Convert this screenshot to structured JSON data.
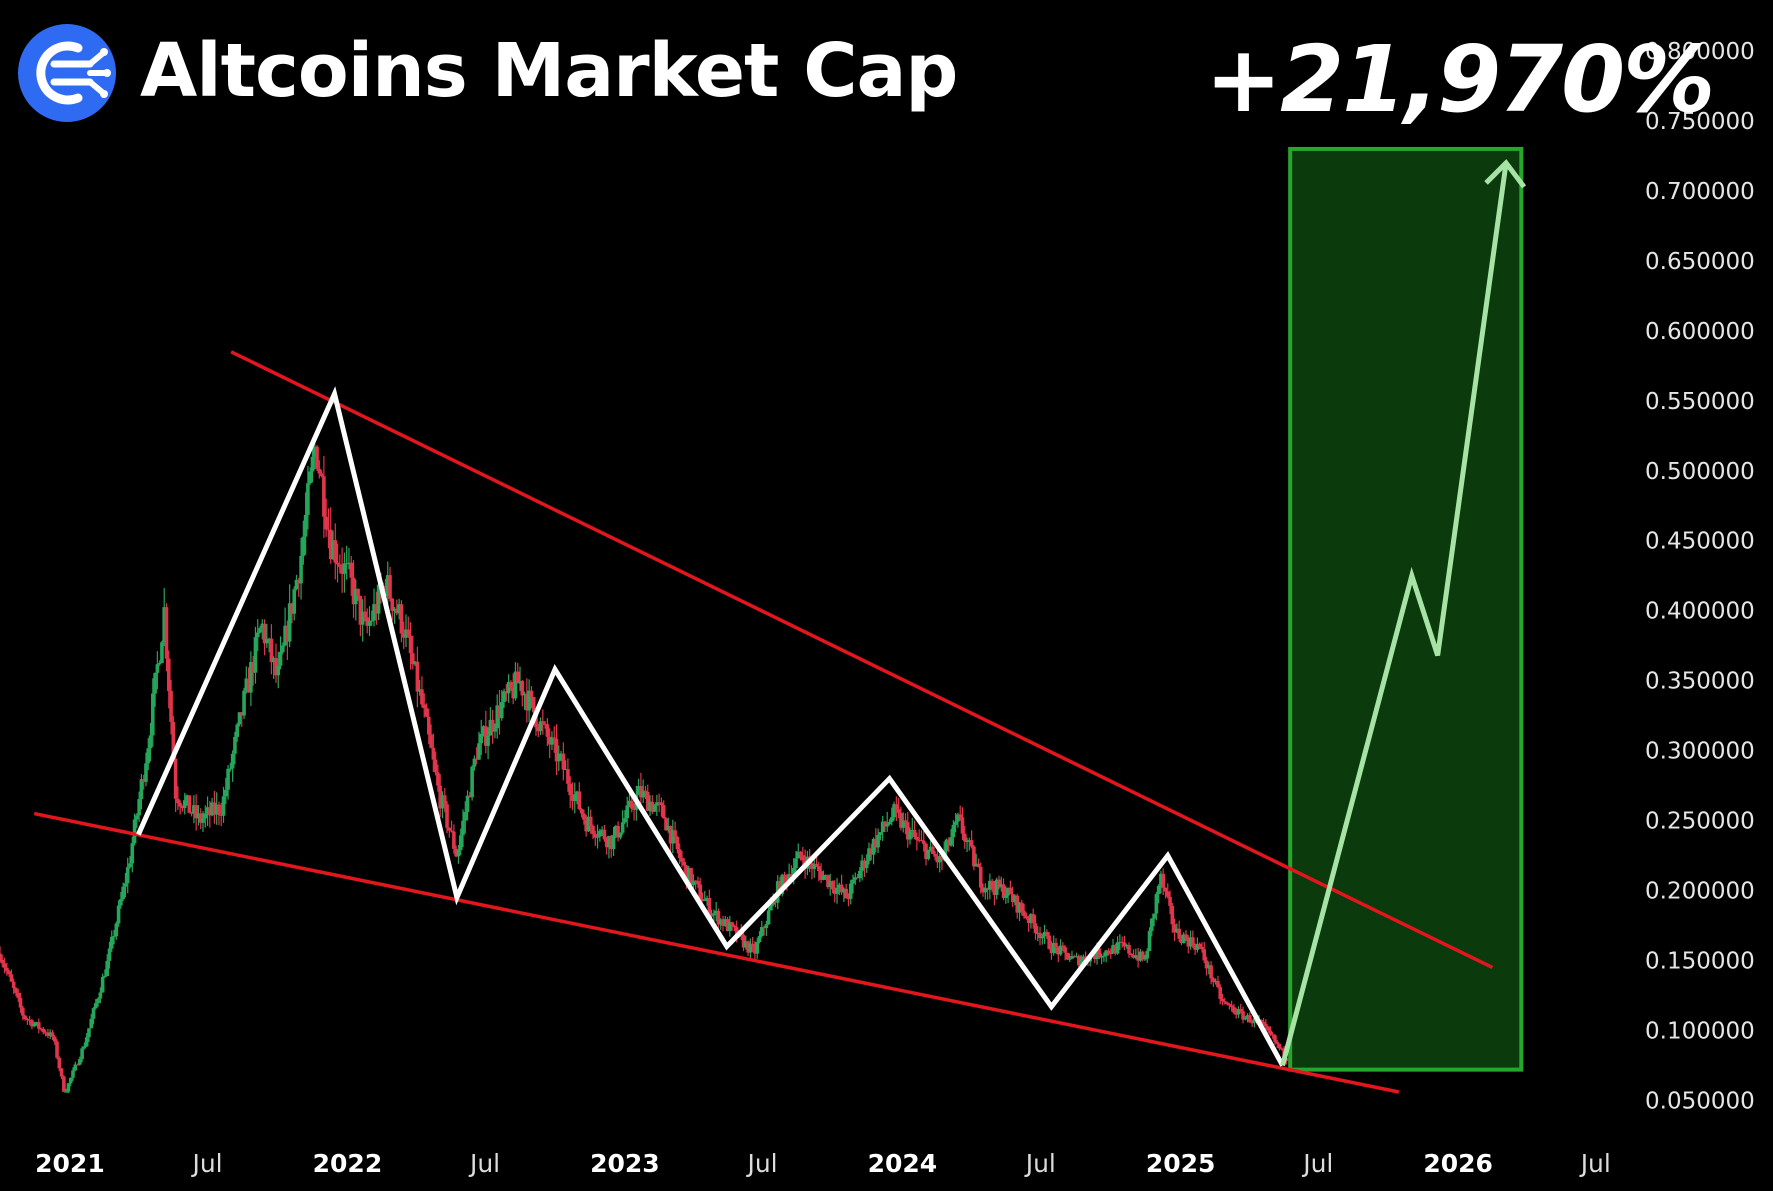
{
  "header": {
    "title": "Altcoins Market Cap",
    "gain_label": "+21,970%",
    "logo_icon": "altcoin-logo-icon"
  },
  "chart_data": {
    "type": "candlestick",
    "title": "Altcoins Market Cap",
    "annotation": "+21,970%",
    "ylim": [
      0.036,
      0.815
    ],
    "yticks": [
      {
        "label": "0.800000",
        "value": 0.8
      },
      {
        "label": "0.750000",
        "value": 0.75
      },
      {
        "label": "0.700000",
        "value": 0.7
      },
      {
        "label": "0.650000",
        "value": 0.65
      },
      {
        "label": "0.600000",
        "value": 0.6
      },
      {
        "label": "0.550000",
        "value": 0.55
      },
      {
        "label": "0.500000",
        "value": 0.5
      },
      {
        "label": "0.450000",
        "value": 0.45
      },
      {
        "label": "0.400000",
        "value": 0.4
      },
      {
        "label": "0.350000",
        "value": 0.35
      },
      {
        "label": "0.300000",
        "value": 0.3
      },
      {
        "label": "0.250000",
        "value": 0.25
      },
      {
        "label": "0.200000",
        "value": 0.2
      },
      {
        "label": "0.150000",
        "value": 0.15
      },
      {
        "label": "0.100000",
        "value": 0.1
      },
      {
        "label": "0.050000",
        "value": 0.05
      }
    ],
    "xlim": [
      "2020-10-01",
      "2026-08-15"
    ],
    "xticks": [
      {
        "label": "2021",
        "date": "2021-01-01",
        "major": true
      },
      {
        "label": "Jul",
        "date": "2021-07-01",
        "major": false
      },
      {
        "label": "2022",
        "date": "2022-01-01",
        "major": true
      },
      {
        "label": "Jul",
        "date": "2022-07-01",
        "major": false
      },
      {
        "label": "2023",
        "date": "2023-01-01",
        "major": true
      },
      {
        "label": "Jul",
        "date": "2023-07-01",
        "major": false
      },
      {
        "label": "2024",
        "date": "2024-01-01",
        "major": true
      },
      {
        "label": "Jul",
        "date": "2024-07-01",
        "major": false
      },
      {
        "label": "2025",
        "date": "2025-01-01",
        "major": true
      },
      {
        "label": "Jul",
        "date": "2025-07-01",
        "major": false
      },
      {
        "label": "2026",
        "date": "2026-01-01",
        "major": true
      },
      {
        "label": "Jul",
        "date": "2026-07-01",
        "major": false
      }
    ],
    "price_path": [
      [
        "2020-10-01",
        0.155
      ],
      [
        "2020-11-01",
        0.11
      ],
      [
        "2020-12-10",
        0.095
      ],
      [
        "2020-12-25",
        0.055
      ],
      [
        "2021-01-20",
        0.09
      ],
      [
        "2021-02-20",
        0.15
      ],
      [
        "2021-03-20",
        0.22
      ],
      [
        "2021-04-15",
        0.31
      ],
      [
        "2021-05-05",
        0.4
      ],
      [
        "2021-05-20",
        0.27
      ],
      [
        "2021-06-20",
        0.25
      ],
      [
        "2021-07-20",
        0.26
      ],
      [
        "2021-08-20",
        0.34
      ],
      [
        "2021-09-10",
        0.39
      ],
      [
        "2021-10-01",
        0.35
      ],
      [
        "2021-11-01",
        0.44
      ],
      [
        "2021-11-20",
        0.52
      ],
      [
        "2021-12-10",
        0.45
      ],
      [
        "2022-01-05",
        0.42
      ],
      [
        "2022-01-25",
        0.385
      ],
      [
        "2022-02-20",
        0.42
      ],
      [
        "2022-03-15",
        0.39
      ],
      [
        "2022-04-10",
        0.33
      ],
      [
        "2022-05-01",
        0.27
      ],
      [
        "2022-05-25",
        0.225
      ],
      [
        "2022-06-20",
        0.3
      ],
      [
        "2022-07-20",
        0.33
      ],
      [
        "2022-08-15",
        0.35
      ],
      [
        "2022-09-10",
        0.32
      ],
      [
        "2022-10-10",
        0.29
      ],
      [
        "2022-11-10",
        0.25
      ],
      [
        "2022-12-15",
        0.235
      ],
      [
        "2023-01-20",
        0.27
      ],
      [
        "2023-02-20",
        0.255
      ],
      [
        "2023-03-20",
        0.215
      ],
      [
        "2023-04-25",
        0.185
      ],
      [
        "2023-05-25",
        0.17
      ],
      [
        "2023-06-20",
        0.155
      ],
      [
        "2023-07-20",
        0.2
      ],
      [
        "2023-08-20",
        0.225
      ],
      [
        "2023-09-20",
        0.21
      ],
      [
        "2023-10-20",
        0.195
      ],
      [
        "2023-11-20",
        0.23
      ],
      [
        "2023-12-20",
        0.255
      ],
      [
        "2024-01-20",
        0.235
      ],
      [
        "2024-02-20",
        0.22
      ],
      [
        "2024-03-15",
        0.25
      ],
      [
        "2024-04-15",
        0.205
      ],
      [
        "2024-05-15",
        0.2
      ],
      [
        "2024-06-15",
        0.18
      ],
      [
        "2024-07-15",
        0.16
      ],
      [
        "2024-08-15",
        0.15
      ],
      [
        "2024-09-15",
        0.155
      ],
      [
        "2024-10-15",
        0.16
      ],
      [
        "2024-11-15",
        0.15
      ],
      [
        "2024-12-05",
        0.21
      ],
      [
        "2024-12-25",
        0.17
      ],
      [
        "2025-01-25",
        0.16
      ],
      [
        "2025-02-25",
        0.12
      ],
      [
        "2025-03-25",
        0.11
      ],
      [
        "2025-04-15",
        0.105
      ],
      [
        "2025-05-01",
        0.095
      ],
      [
        "2025-05-20",
        0.08
      ]
    ],
    "resistance_line": [
      [
        "2021-08-01",
        0.585
      ],
      [
        "2026-02-15",
        0.145
      ]
    ],
    "support_line": [
      [
        "2020-11-15",
        0.255
      ],
      [
        "2025-10-15",
        0.056
      ]
    ],
    "zigzag": [
      [
        "2021-04-01",
        0.24
      ],
      [
        "2021-12-15",
        0.555
      ],
      [
        "2022-05-25",
        0.195
      ],
      [
        "2022-10-01",
        0.358
      ],
      [
        "2023-05-15",
        0.16
      ],
      [
        "2023-12-15",
        0.28
      ],
      [
        "2024-07-15",
        0.117
      ],
      [
        "2024-12-15",
        0.225
      ],
      [
        "2025-05-15",
        0.075
      ]
    ],
    "projection": [
      [
        "2025-05-15",
        0.075
      ],
      [
        "2025-11-01",
        0.425
      ],
      [
        "2025-12-05",
        0.368
      ],
      [
        "2026-03-05",
        0.72
      ]
    ],
    "target_box": {
      "x0": "2025-05-25",
      "x1": "2026-03-25",
      "y0": 0.072,
      "y1": 0.73
    },
    "colors": {
      "up": "#26a65b",
      "down": "#e0354a",
      "trendline": "#e3161d",
      "zigzag": "#ffffff",
      "projection": "#a8e3a6",
      "box_fill": "#0b3a0d",
      "box_stroke": "#27a62c"
    },
    "grid": false,
    "legend": "none"
  }
}
